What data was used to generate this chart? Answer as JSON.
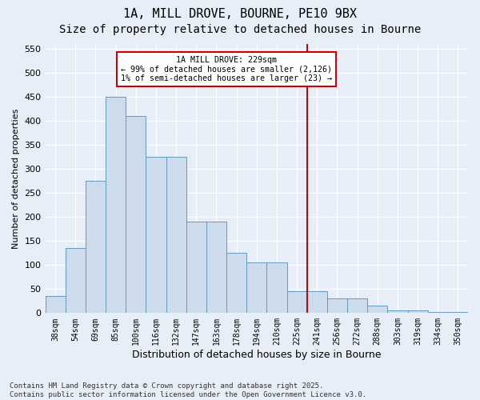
{
  "title": "1A, MILL DROVE, BOURNE, PE10 9BX",
  "subtitle": "Size of property relative to detached houses in Bourne",
  "xlabel": "Distribution of detached houses by size in Bourne",
  "ylabel": "Number of detached properties",
  "categories": [
    "38sqm",
    "54sqm",
    "69sqm",
    "85sqm",
    "100sqm",
    "116sqm",
    "132sqm",
    "147sqm",
    "163sqm",
    "178sqm",
    "194sqm",
    "210sqm",
    "225sqm",
    "241sqm",
    "256sqm",
    "272sqm",
    "288sqm",
    "303sqm",
    "319sqm",
    "334sqm",
    "350sqm"
  ],
  "values": [
    35,
    135,
    275,
    450,
    410,
    325,
    325,
    190,
    190,
    125,
    105,
    105,
    46,
    46,
    30,
    30,
    15,
    5,
    5,
    3,
    2
  ],
  "bar_color": "#ccdcec",
  "bar_edge_color": "#6699bb",
  "vline_x_index": 12,
  "vline_color": "#cc0000",
  "annotation_text": "1A MILL DROVE: 229sqm\n← 99% of detached houses are smaller (2,126)\n1% of semi-detached houses are larger (23) →",
  "annotation_box_color": "#cc0000",
  "ylim": [
    0,
    560
  ],
  "yticks": [
    0,
    50,
    100,
    150,
    200,
    250,
    300,
    350,
    400,
    450,
    500,
    550
  ],
  "background_color": "#e8eef8",
  "plot_background": "#e8eef8",
  "title_fontsize": 11,
  "subtitle_fontsize": 10,
  "ylabel_fontsize": 8,
  "xlabel_fontsize": 9,
  "tick_fontsize": 8,
  "xtick_fontsize": 7,
  "footer_text": "Contains HM Land Registry data © Crown copyright and database right 2025.\nContains public sector information licensed under the Open Government Licence v3.0.",
  "footer_fontsize": 6.5
}
